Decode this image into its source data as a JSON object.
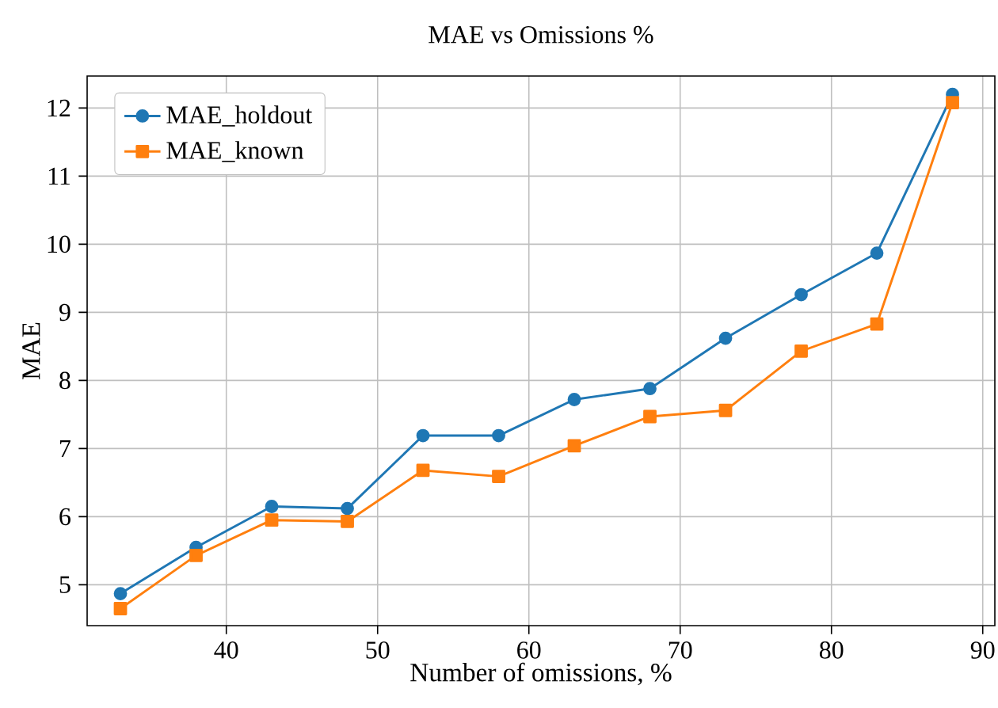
{
  "chart_data": {
    "type": "line",
    "title": "MAE vs Omissions %",
    "xlabel": "Number of omissions, %",
    "ylabel": "MAE",
    "x": [
      33,
      38,
      43,
      48,
      53,
      58,
      63,
      68,
      73,
      78,
      83,
      88
    ],
    "series": [
      {
        "name": "MAE_holdout",
        "color": "#1f77b4",
        "marker": "circle",
        "values": [
          4.87,
          5.55,
          6.15,
          6.12,
          7.19,
          7.19,
          7.72,
          7.88,
          8.62,
          9.26,
          9.87,
          12.2
        ]
      },
      {
        "name": "MAE_known",
        "color": "#ff7f0e",
        "marker": "square",
        "values": [
          4.65,
          5.43,
          5.95,
          5.93,
          6.68,
          6.59,
          7.04,
          7.47,
          7.56,
          8.43,
          8.83,
          12.08
        ]
      }
    ],
    "xlim": [
      30.8,
      90.8
    ],
    "ylim": [
      4.4,
      12.47
    ],
    "xticks": [
      40,
      50,
      60,
      70,
      80,
      90
    ],
    "yticks": [
      5,
      6,
      7,
      8,
      9,
      10,
      11,
      12
    ],
    "grid": true,
    "legend": "top left",
    "line_style": "solid"
  }
}
